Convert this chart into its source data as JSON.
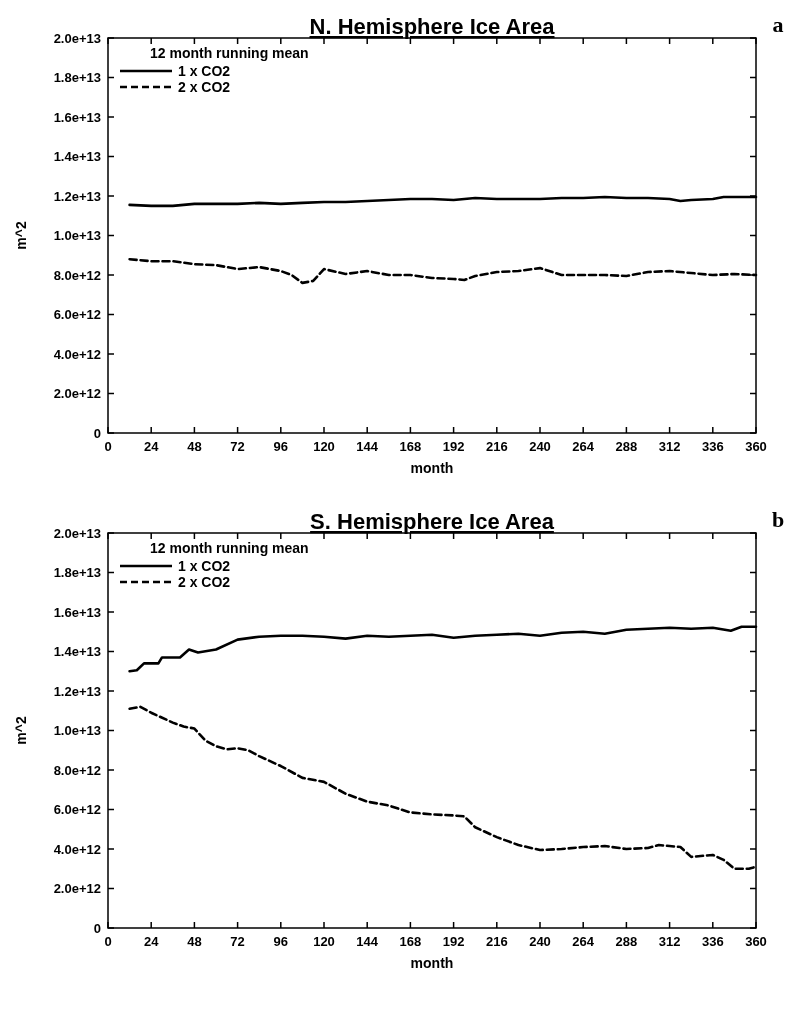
{
  "chart_data": [
    {
      "type": "line",
      "title": "N. Hemisphere Ice Area",
      "xlabel": "month",
      "ylabel": "m^2",
      "legend_title": "12 month running mean",
      "legend": "top left",
      "grid": false,
      "annotations": [
        "a"
      ],
      "xlim": [
        0,
        360
      ],
      "xticks": [
        0,
        24,
        48,
        72,
        96,
        120,
        144,
        168,
        192,
        216,
        240,
        264,
        288,
        312,
        336,
        360
      ],
      "ylim": [
        0,
        20000000000000.0
      ],
      "yticks": [
        0,
        {
          "value": 2000000000000.0,
          "label": "2.0e+12"
        },
        {
          "value": 4000000000000.0,
          "label": "4.0e+12"
        },
        {
          "value": 6000000000000.0,
          "label": "6.0e+12"
        },
        {
          "value": 8000000000000.0,
          "label": "8.0e+12"
        },
        {
          "value": 10000000000000.0,
          "label": "1.0e+13"
        },
        {
          "value": 12000000000000.0,
          "label": "1.2e+13"
        },
        {
          "value": 14000000000000.0,
          "label": "1.4e+13"
        },
        {
          "value": 16000000000000.0,
          "label": "1.6e+13"
        },
        {
          "value": 18000000000000.0,
          "label": "1.8e+13"
        },
        {
          "value": 20000000000000.0,
          "label": "2.0e+13"
        }
      ],
      "series": [
        {
          "name": "1 x CO2",
          "color": "#000000",
          "line_style": "solid",
          "x": [
            12,
            24,
            36,
            48,
            60,
            72,
            84,
            96,
            108,
            120,
            132,
            144,
            156,
            168,
            180,
            192,
            204,
            216,
            228,
            240,
            252,
            264,
            276,
            288,
            300,
            312,
            318,
            324,
            336,
            342,
            360
          ],
          "values": [
            11550000000000.0,
            11500000000000.0,
            11500000000000.0,
            11600000000000.0,
            11600000000000.0,
            11600000000000.0,
            11650000000000.0,
            11600000000000.0,
            11650000000000.0,
            11700000000000.0,
            11700000000000.0,
            11750000000000.0,
            11800000000000.0,
            11850000000000.0,
            11850000000000.0,
            11800000000000.0,
            11900000000000.0,
            11850000000000.0,
            11850000000000.0,
            11850000000000.0,
            11900000000000.0,
            11900000000000.0,
            11950000000000.0,
            11900000000000.0,
            11900000000000.0,
            11850000000000.0,
            11750000000000.0,
            11800000000000.0,
            11850000000000.0,
            11950000000000.0,
            11950000000000.0
          ]
        },
        {
          "name": "2 x CO2",
          "color": "#000000",
          "line_style": "dashed",
          "x": [
            12,
            24,
            36,
            48,
            60,
            72,
            84,
            96,
            102,
            108,
            114,
            120,
            132,
            144,
            156,
            168,
            180,
            192,
            198,
            204,
            216,
            228,
            240,
            252,
            264,
            276,
            288,
            300,
            312,
            324,
            336,
            348,
            360
          ],
          "values": [
            8800000000000.0,
            8700000000000.0,
            8700000000000.0,
            8550000000000.0,
            8500000000000.0,
            8300000000000.0,
            8400000000000.0,
            8200000000000.0,
            8000000000000.0,
            7600000000000.0,
            7700000000000.0,
            8300000000000.0,
            8050000000000.0,
            8200000000000.0,
            8000000000000.0,
            8000000000000.0,
            7850000000000.0,
            7800000000000.0,
            7750000000000.0,
            7950000000000.0,
            8150000000000.0,
            8200000000000.0,
            8350000000000.0,
            8000000000000.0,
            8000000000000.0,
            8000000000000.0,
            7950000000000.0,
            8150000000000.0,
            8200000000000.0,
            8100000000000.0,
            8000000000000.0,
            8050000000000.0,
            8000000000000.0
          ]
        }
      ]
    },
    {
      "type": "line",
      "title": "S. Hemisphere Ice Area",
      "xlabel": "month",
      "ylabel": "m^2",
      "legend_title": "12 month running mean",
      "legend": "top left",
      "grid": false,
      "annotations": [
        "b"
      ],
      "xlim": [
        0,
        360
      ],
      "xticks": [
        0,
        24,
        48,
        72,
        96,
        120,
        144,
        168,
        192,
        216,
        240,
        264,
        288,
        312,
        336,
        360
      ],
      "ylim": [
        0,
        20000000000000.0
      ],
      "yticks": [
        0,
        {
          "value": 2000000000000.0,
          "label": "2.0e+12"
        },
        {
          "value": 4000000000000.0,
          "label": "4.0e+12"
        },
        {
          "value": 6000000000000.0,
          "label": "6.0e+12"
        },
        {
          "value": 8000000000000.0,
          "label": "8.0e+12"
        },
        {
          "value": 10000000000000.0,
          "label": "1.0e+13"
        },
        {
          "value": 12000000000000.0,
          "label": "1.2e+13"
        },
        {
          "value": 14000000000000.0,
          "label": "1.4e+13"
        },
        {
          "value": 16000000000000.0,
          "label": "1.6e+13"
        },
        {
          "value": 18000000000000.0,
          "label": "1.8e+13"
        },
        {
          "value": 20000000000000.0,
          "label": "2.0e+13"
        }
      ],
      "series": [
        {
          "name": "1 x CO2",
          "color": "#000000",
          "line_style": "solid",
          "x": [
            12,
            16,
            20,
            28,
            30,
            40,
            45,
            50,
            60,
            72,
            84,
            96,
            108,
            120,
            132,
            144,
            156,
            168,
            180,
            192,
            204,
            216,
            228,
            240,
            252,
            264,
            276,
            288,
            300,
            312,
            324,
            336,
            346,
            352,
            360
          ],
          "values": [
            13000000000000.0,
            13050000000000.0,
            13400000000000.0,
            13400000000000.0,
            13700000000000.0,
            13700000000000.0,
            14100000000000.0,
            13950000000000.0,
            14100000000000.0,
            14600000000000.0,
            14750000000000.0,
            14800000000000.0,
            14800000000000.0,
            14750000000000.0,
            14650000000000.0,
            14800000000000.0,
            14750000000000.0,
            14800000000000.0,
            14850000000000.0,
            14700000000000.0,
            14800000000000.0,
            14850000000000.0,
            14900000000000.0,
            14800000000000.0,
            14950000000000.0,
            15000000000000.0,
            14900000000000.0,
            15100000000000.0,
            15150000000000.0,
            15200000000000.0,
            15150000000000.0,
            15200000000000.0,
            15050000000000.0,
            15250000000000.0,
            15250000000000.0
          ]
        },
        {
          "name": "2 x CO2",
          "color": "#000000",
          "line_style": "dashed",
          "x": [
            12,
            18,
            24,
            36,
            42,
            48,
            54,
            60,
            66,
            72,
            78,
            84,
            96,
            108,
            120,
            132,
            144,
            156,
            168,
            180,
            192,
            198,
            204,
            216,
            228,
            240,
            252,
            264,
            276,
            288,
            300,
            306,
            312,
            318,
            324,
            336,
            342,
            348,
            356,
            360
          ],
          "values": [
            11100000000000.0,
            11200000000000.0,
            10900000000000.0,
            10400000000000.0,
            10200000000000.0,
            10100000000000.0,
            9500000000000.0,
            9200000000000.0,
            9050000000000.0,
            9100000000000.0,
            9000000000000.0,
            8700000000000.0,
            8200000000000.0,
            7600000000000.0,
            7400000000000.0,
            6800000000000.0,
            6400000000000.0,
            6200000000000.0,
            5850000000000.0,
            5750000000000.0,
            5700000000000.0,
            5650000000000.0,
            5100000000000.0,
            4600000000000.0,
            4200000000000.0,
            3950000000000.0,
            4000000000000.0,
            4100000000000.0,
            4150000000000.0,
            4000000000000.0,
            4050000000000.0,
            4200000000000.0,
            4150000000000.0,
            4100000000000.0,
            3600000000000.0,
            3700000000000.0,
            3450000000000.0,
            3000000000000.0,
            3000000000000.0,
            3100000000000.0
          ]
        }
      ]
    }
  ]
}
